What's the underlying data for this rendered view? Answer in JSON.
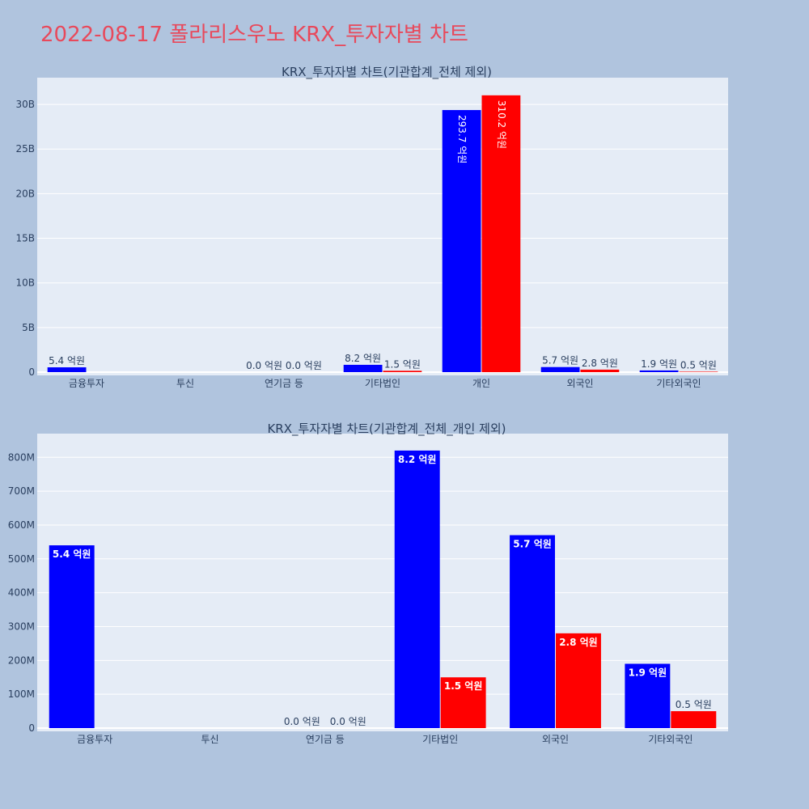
{
  "page_title": "2022-08-17 폴라리스우노 KRX_투자자별 차트",
  "colors": {
    "buy": "#0000ff",
    "sell": "#ff0000",
    "plot_bg": "#e5ecf6",
    "page_bg": "#b0c4de",
    "title": "#e8495b",
    "text": "#2a3f5f",
    "grid": "#ffffff"
  },
  "chart_data": [
    {
      "type": "bar",
      "title": "KRX_투자자별 차트(기관합계_전체 제외)",
      "categories": [
        "금융투자",
        "투신",
        "연기금 등",
        "기타법인",
        "개인",
        "외국인",
        "기타외국인"
      ],
      "series": [
        {
          "color": "#0000ff",
          "values": [
            540000000,
            0,
            0,
            820000000,
            29370000000,
            570000000,
            190000000
          ],
          "labels": [
            "5.4 억원",
            "",
            "0.0 억원",
            "8.2 억원",
            "293.7 억원",
            "5.7 억원",
            "1.9 억원"
          ]
        },
        {
          "color": "#ff0000",
          "values": [
            0,
            0,
            0,
            150000000,
            31020000000,
            280000000,
            50000000
          ],
          "labels": [
            "",
            "",
            "0.0 억원",
            "1.5 억원",
            "310.2 억원",
            "2.8 억원",
            "0.5 억원"
          ]
        }
      ],
      "ylim": [
        0,
        33000000000
      ],
      "yticks": [
        0,
        5000000000,
        10000000000,
        15000000000,
        20000000000,
        25000000000,
        30000000000
      ],
      "ytick_labels": [
        "0",
        "5B",
        "10B",
        "15B",
        "20B",
        "25B",
        "30B"
      ],
      "grid": true
    },
    {
      "type": "bar",
      "title": "KRX_투자자별 차트(기관합계_전체_개인 제외)",
      "categories": [
        "금융투자",
        "투신",
        "연기금 등",
        "기타법인",
        "외국인",
        "기타외국인"
      ],
      "series": [
        {
          "color": "#0000ff",
          "values": [
            540000000,
            0,
            0,
            820000000,
            570000000,
            190000000
          ],
          "labels": [
            "5.4 억원",
            "",
            "0.0 억원",
            "8.2 억원",
            "5.7 억원",
            "1.9 억원"
          ]
        },
        {
          "color": "#ff0000",
          "values": [
            0,
            0,
            0,
            150000000,
            280000000,
            50000000
          ],
          "labels": [
            "",
            "",
            "0.0 억원",
            "1.5 억원",
            "2.8 억원",
            "0.5 억원"
          ]
        }
      ],
      "ylim": [
        0,
        870000000
      ],
      "yticks": [
        0,
        100000000,
        200000000,
        300000000,
        400000000,
        500000000,
        600000000,
        700000000,
        800000000
      ],
      "ytick_labels": [
        "0",
        "100M",
        "200M",
        "300M",
        "400M",
        "500M",
        "600M",
        "700M",
        "800M"
      ],
      "grid": true
    }
  ]
}
